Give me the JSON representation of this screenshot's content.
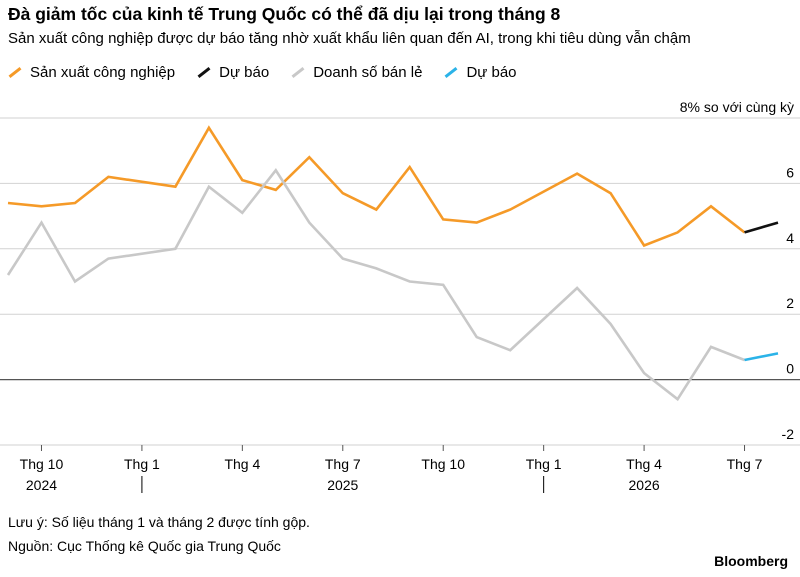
{
  "title": "Đà giảm tốc của kinh tế Trung Quốc có thể đã dịu lại trong tháng 8",
  "subtitle": "Sản xuất công nghiệp được dự báo tăng nhờ xuất khẩu liên quan đến AI, trong khi tiêu dùng vẫn chậm",
  "legend": [
    {
      "label": "Sản xuất công nghiệp",
      "color": "#f59a28"
    },
    {
      "label": "Dự báo",
      "color": "#111111"
    },
    {
      "label": "Doanh số bán lẻ",
      "color": "#c8c8c8"
    },
    {
      "label": "Dự báo",
      "color": "#2bb3e8"
    }
  ],
  "footer": {
    "note": "Lưu ý: Số liệu tháng 1 và tháng 2 được tính gộp.",
    "source": "Nguồn: Cục Thống kê Quốc gia Trung Quốc",
    "brand": "Bloomberg"
  },
  "chart_data": {
    "type": "line",
    "y_unit_label": "8% so với cùng kỳ",
    "ylim": [
      -2,
      8
    ],
    "yticks": [
      "8% so với cùng kỳ",
      "6",
      "4",
      "2",
      "0",
      "-2"
    ],
    "ytick_values": [
      8,
      6,
      4,
      2,
      0,
      -2
    ],
    "grid": true,
    "legend_position": "top-left",
    "x": [
      "2024-09",
      "2024-10",
      "2024-11",
      "2024-12",
      "2025-01",
      "2025-02",
      "2025-03",
      "2025-04",
      "2025-05",
      "2025-06",
      "2025-07",
      "2025-08",
      "2025-09",
      "2025-10",
      "2025-11",
      "2025-12",
      "2026-01",
      "2026-02",
      "2026-03",
      "2026-04",
      "2026-05",
      "2026-06",
      "2026-07",
      "2026-08"
    ],
    "xtick_labels": [
      "Thg 10",
      "Thg 1",
      "Thg 4",
      "Thg 7",
      "Thg 10",
      "Thg 1",
      "Thg 4",
      "Thg 7"
    ],
    "xtick_values": [
      "2024-10",
      "2025-01",
      "2025-04",
      "2025-07",
      "2025-10",
      "2026-01",
      "2026-04",
      "2026-07"
    ],
    "year_labels": [
      {
        "label": "2024",
        "x": "2024-10"
      },
      {
        "label": "2025",
        "x": "2025-07"
      },
      {
        "label": "2026",
        "x": "2026-04"
      }
    ],
    "year_separators": [
      "2025-01",
      "2026-01"
    ],
    "series": [
      {
        "name": "Sản xuất công nghiệp",
        "color": "#f59a28",
        "x": [
          "2024-09",
          "2024-10",
          "2024-11",
          "2024-12",
          "2025-02",
          "2025-03",
          "2025-04",
          "2025-05",
          "2025-06",
          "2025-07",
          "2025-08",
          "2025-09",
          "2025-10",
          "2025-11",
          "2025-12",
          "2026-02",
          "2026-03",
          "2026-04",
          "2026-05",
          "2026-06",
          "2026-07"
        ],
        "values": [
          5.4,
          5.3,
          5.4,
          6.2,
          5.9,
          7.7,
          6.1,
          5.8,
          6.8,
          5.7,
          5.2,
          6.5,
          4.9,
          4.8,
          5.2,
          6.3,
          5.7,
          4.1,
          4.5,
          5.3,
          4.5
        ]
      },
      {
        "name": "Dự báo",
        "color": "#111111",
        "x": [
          "2026-07",
          "2026-08"
        ],
        "values": [
          4.5,
          4.8
        ]
      },
      {
        "name": "Doanh số bán lẻ",
        "color": "#c8c8c8",
        "x": [
          "2024-09",
          "2024-10",
          "2024-11",
          "2024-12",
          "2025-02",
          "2025-03",
          "2025-04",
          "2025-05",
          "2025-06",
          "2025-07",
          "2025-08",
          "2025-09",
          "2025-10",
          "2025-11",
          "2025-12",
          "2026-02",
          "2026-03",
          "2026-04",
          "2026-05",
          "2026-06",
          "2026-07"
        ],
        "values": [
          3.2,
          4.8,
          3.0,
          3.7,
          4.0,
          5.9,
          5.1,
          6.4,
          4.8,
          3.7,
          3.4,
          3.0,
          2.9,
          1.3,
          0.9,
          2.8,
          1.7,
          0.2,
          -0.6,
          1.0,
          0.6
        ]
      },
      {
        "name": "Dự báo",
        "color": "#2bb3e8",
        "x": [
          "2026-07",
          "2026-08"
        ],
        "values": [
          0.6,
          0.8
        ]
      }
    ]
  }
}
